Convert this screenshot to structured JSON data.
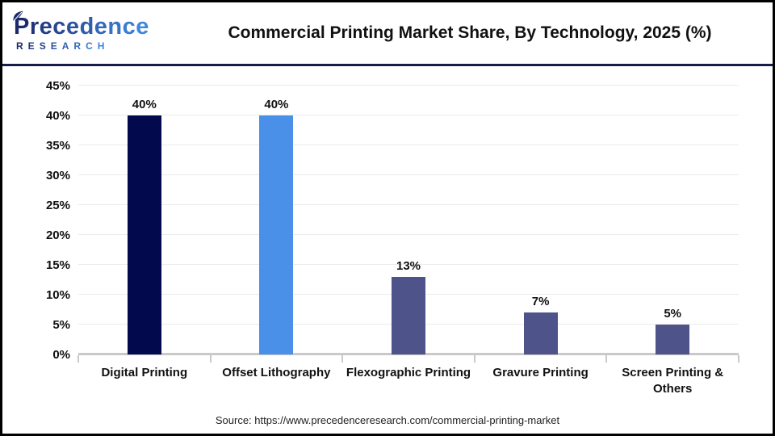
{
  "header": {
    "logo": {
      "line1": "Precedence",
      "line2": "RESEARCH",
      "color_start": "#1c2a6d",
      "color_end": "#3e86df"
    },
    "title": "Commercial Printing Market Share, By Technology, 2025 (%)"
  },
  "chart_data": {
    "type": "bar",
    "title": "Commercial Printing Market Share, By Technology, 2025 (%)",
    "categories": [
      "Digital Printing",
      "Offset Lithography",
      "Flexographic Printing",
      "Gravure Printing",
      "Screen Printing & Others"
    ],
    "values": [
      40,
      40,
      13,
      7,
      5
    ],
    "value_labels": [
      "40%",
      "40%",
      "13%",
      "7%",
      "5%"
    ],
    "bar_colors": [
      "#02094d",
      "#4a90e8",
      "#4e538a",
      "#4e538a",
      "#4e538a"
    ],
    "xlabel": "",
    "ylabel": "",
    "ylim": [
      0,
      45
    ],
    "ytick_step": 5,
    "ytick_labels": [
      "0%",
      "5%",
      "10%",
      "15%",
      "20%",
      "25%",
      "30%",
      "35%",
      "40%",
      "45%"
    ],
    "grid": true,
    "legend": false
  },
  "footer": {
    "source": "Source: https://www.precedenceresearch.com/commercial-printing-market"
  },
  "colors": {
    "divider": "#161d4a",
    "gridline": "#ebebeb",
    "axis": "#c9c9c9",
    "text": "#111111"
  }
}
